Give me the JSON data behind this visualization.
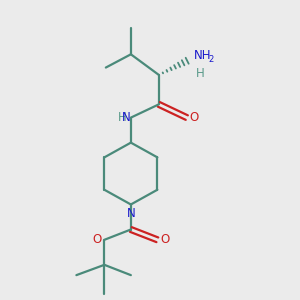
{
  "bg_color": "#ebebeb",
  "bond_color": "#4a8a7a",
  "N_color": "#1a1acc",
  "O_color": "#cc2222",
  "H_color": "#5a9a8a",
  "lw": 1.6,
  "fig_size": [
    3.0,
    3.0
  ],
  "dpi": 100,
  "xlim": [
    0,
    10
  ],
  "ylim": [
    0,
    10
  ]
}
